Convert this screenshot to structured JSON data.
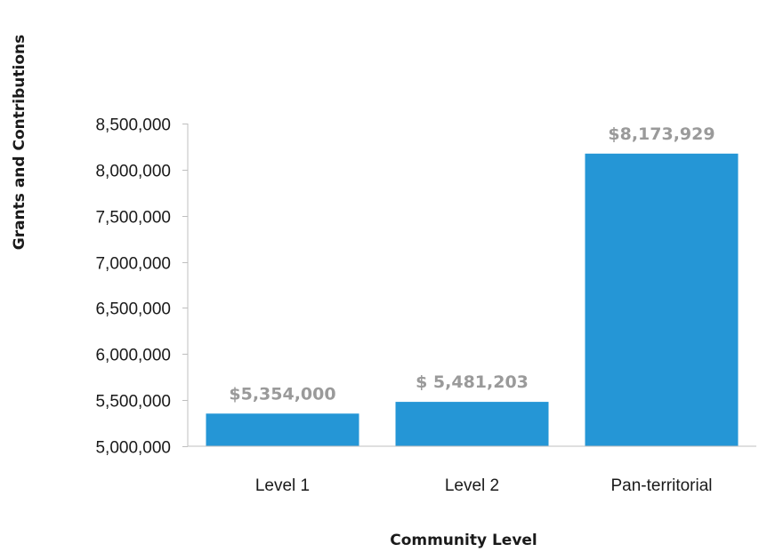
{
  "chart_data": {
    "type": "bar",
    "title": "",
    "xlabel": "Community Level",
    "ylabel": "Grants and Contributions",
    "categories": [
      "Level 1",
      "Level 2",
      "Pan-territorial"
    ],
    "values": [
      5354000,
      5481203,
      8173929
    ],
    "data_labels": [
      "$5,354,000",
      "$ 5,481,203",
      "$8,173,929"
    ],
    "ylim": [
      5000000,
      8500000
    ],
    "yticks": [
      5000000,
      5500000,
      6000000,
      6500000,
      7000000,
      7500000,
      8000000,
      8500000
    ],
    "ytick_labels": [
      "5,000,000",
      "5,500,000",
      "6,000,000",
      "6,500,000",
      "7,000,000",
      "7,500,000",
      "8,000,000",
      "8,500,000"
    ],
    "grid": false,
    "legend": "none",
    "colors": {
      "bar": "#2596d6",
      "data_label": "#9a9a9a",
      "axis": "#bfbfbf",
      "text": "#1a1a1a"
    }
  }
}
